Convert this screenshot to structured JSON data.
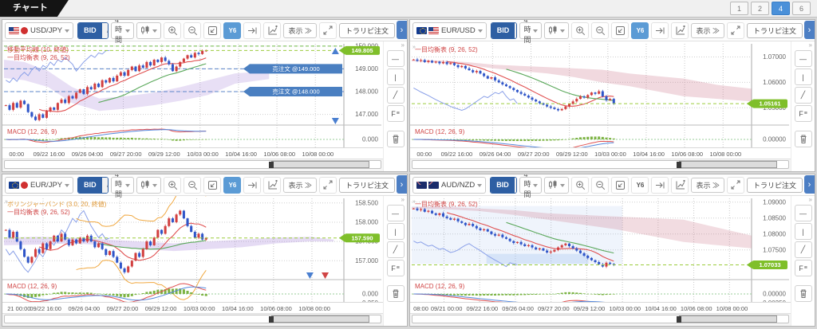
{
  "app": {
    "tab_title": "チャート",
    "layout_buttons": [
      "1",
      "2",
      "4",
      "6"
    ],
    "active_layout": "4"
  },
  "toolbar": {
    "bid": "BID",
    "ask": "ASK",
    "timeframe": "4時間",
    "y6": "Y6",
    "display": "表示 ≫",
    "trade_order": "トラリピ注文",
    "expand_tab": "›"
  },
  "panels": [
    {
      "pair": "USD/JPY",
      "flags": [
        "us",
        "jp"
      ],
      "y6_active": true
    },
    {
      "pair": "EUR/USD",
      "flags": [
        "eu",
        "us"
      ],
      "y6_active": true
    },
    {
      "pair": "EUR/JPY",
      "flags": [
        "eu",
        "jp"
      ],
      "y6_active": true
    },
    {
      "pair": "AUD/NZD",
      "flags": [
        "au",
        "nz"
      ],
      "y6_active": false
    }
  ],
  "chart_data": [
    {
      "type": "candlestick",
      "title": "USD/JPY 4時間",
      "ylim": [
        146.6,
        150.1
      ],
      "yticks": [
        {
          "v": 150.0,
          "label": "150.000"
        },
        {
          "v": 149.0,
          "label": "149.000"
        },
        {
          "v": 148.0,
          "label": "148.000"
        },
        {
          "v": 147.0,
          "label": "147.000"
        }
      ],
      "current": {
        "v": 149.805,
        "label": "149.805"
      },
      "legend": [
        {
          "text": "移動平均線 (10, 終値)",
          "color": "#d04545"
        },
        {
          "text": "一目均衡表 (9, 26, 52)",
          "color": "#d04545"
        }
      ],
      "macd_label": "MACD (12, 26, 9)",
      "macd_ticks": [
        {
          "label": "0.000",
          "pos": "zero"
        }
      ],
      "end_frac": 0.6,
      "closes": [
        147.4,
        147.2,
        147.5,
        147.3,
        147.6,
        147.45,
        147.1,
        146.9,
        146.75,
        147.0,
        146.85,
        147.15,
        147.3,
        147.2,
        147.5,
        147.65,
        147.5,
        147.8,
        147.7,
        147.95,
        148.1,
        147.9,
        148.2,
        148.1,
        148.35,
        148.2,
        148.5,
        148.4,
        148.6,
        148.45,
        148.7,
        148.85,
        148.7,
        148.95,
        149.1,
        148.9,
        149.15,
        149.05,
        149.3,
        149.15,
        149.4,
        149.3,
        149.5,
        149.35,
        149.2,
        148.9,
        149.1,
        149.3,
        149.45,
        149.6,
        149.5,
        149.7,
        149.65,
        149.8,
        149.805
      ],
      "cloud": {
        "color": "rgba(150,110,210,0.22)",
        "x": [
          0,
          0.06,
          0.13,
          0.2,
          0.28,
          0.36,
          0.44,
          0.52,
          0.6,
          0.68,
          0.78
        ],
        "a": [
          149.4,
          149.3,
          148.9,
          148.2,
          147.7,
          147.8,
          147.95,
          148.2,
          148.5,
          148.8,
          148.9
        ],
        "b": [
          148.6,
          148.5,
          148.2,
          147.5,
          147.15,
          147.25,
          147.4,
          147.6,
          147.85,
          148.35,
          148.55
        ]
      },
      "orders": [
        {
          "label": "売注文 @149.000",
          "v": 149.0
        },
        {
          "label": "売注文 @148.000",
          "v": 148.0
        }
      ],
      "levels": [
        {
          "v": 150.0,
          "color": "#6cbb44"
        }
      ],
      "annotations": [
        {
          "type": "up",
          "color": "#4a7fd0",
          "f": 0.975,
          "yf": 0.05
        },
        {
          "type": "down",
          "color": "#4a7fd0",
          "f": 0.975,
          "yf": 0.93
        }
      ],
      "xgrid": [
        0.125,
        0.238,
        0.351,
        0.464,
        0.577,
        0.69,
        0.803,
        0.916
      ],
      "xlabels": [
        {
          "f": 0.015,
          "label": "00:00"
        },
        {
          "f": 0.125,
          "label": "09/22 16:00"
        },
        {
          "f": 0.238,
          "label": "09/26 04:00"
        },
        {
          "f": 0.351,
          "label": "09/27 20:00"
        },
        {
          "f": 0.464,
          "label": "09/29 12:00"
        },
        {
          "f": 0.577,
          "label": "10/03 00:00"
        },
        {
          "f": 0.69,
          "label": "10/04 16:00"
        },
        {
          "f": 0.803,
          "label": "10/06 08:00"
        },
        {
          "f": 0.916,
          "label": "10/08 00:00"
        }
      ]
    },
    {
      "type": "candlestick",
      "title": "EUR/USD 4時間",
      "ylim": [
        1.0438,
        1.0752
      ],
      "yticks": [
        {
          "v": 1.07,
          "label": "1.07000"
        },
        {
          "v": 1.06,
          "label": "1.06000"
        },
        {
          "v": 1.05,
          "label": "1.05000"
        }
      ],
      "current": {
        "v": 1.05161,
        "label": "1.05161"
      },
      "legend": [
        {
          "text": "一目均衡表 (9, 26, 52)",
          "color": "#d04545"
        }
      ],
      "macd_label": "MACD (12, 26, 9)",
      "macd_ticks": [
        {
          "label": "0.00000",
          "pos": "zero"
        }
      ],
      "end_frac": 0.6,
      "closes": [
        1.069,
        1.0685,
        1.0688,
        1.068,
        1.0685,
        1.0678,
        1.0682,
        1.0675,
        1.068,
        1.0672,
        1.0676,
        1.0668,
        1.066,
        1.0665,
        1.0655,
        1.0648,
        1.064,
        1.0645,
        1.0635,
        1.0625,
        1.0615,
        1.062,
        1.0608,
        1.06,
        1.0592,
        1.0585,
        1.0578,
        1.057,
        1.0562,
        1.0555,
        1.0548,
        1.054,
        1.0532,
        1.0525,
        1.0518,
        1.0512,
        1.0505,
        1.05,
        1.0495,
        1.049,
        1.0495,
        1.0505,
        1.0515,
        1.0525,
        1.0535,
        1.0545,
        1.054,
        1.055,
        1.056,
        1.0555,
        1.0565,
        1.0545,
        1.053,
        1.0535,
        1.05161
      ],
      "cloud": {
        "color": "rgba(200,110,130,0.26)",
        "x": [
          0,
          0.08,
          0.16,
          0.24,
          0.32,
          0.4,
          0.48,
          0.56,
          0.64,
          0.72,
          0.8,
          0.9,
          1.0
        ],
        "a": [
          1.0688,
          1.0686,
          1.068,
          1.067,
          1.0665,
          1.066,
          1.0655,
          1.065,
          1.0635,
          1.0625,
          1.0615,
          1.059,
          1.0575
        ],
        "b": [
          1.0683,
          1.0678,
          1.067,
          1.0655,
          1.0645,
          1.0635,
          1.062,
          1.06,
          1.0585,
          1.0565,
          1.0545,
          1.0535,
          1.0525
        ]
      },
      "orders": [],
      "levels": [],
      "annotations": [],
      "xgrid": [
        0.125,
        0.238,
        0.351,
        0.464,
        0.577,
        0.69,
        0.803,
        0.916
      ],
      "xlabels": [
        {
          "f": 0.015,
          "label": "00:00"
        },
        {
          "f": 0.125,
          "label": "09/22 16:00"
        },
        {
          "f": 0.238,
          "label": "09/26 04:00"
        },
        {
          "f": 0.351,
          "label": "09/27 20:00"
        },
        {
          "f": 0.464,
          "label": "09/29 12:00"
        },
        {
          "f": 0.577,
          "label": "10/03 00:00"
        },
        {
          "f": 0.69,
          "label": "10/04 16:00"
        },
        {
          "f": 0.803,
          "label": "10/06 08:00"
        },
        {
          "f": 0.916,
          "label": "10/08 00:00"
        }
      ]
    },
    {
      "type": "candlestick",
      "title": "EUR/JPY 4時間",
      "ylim": [
        156.55,
        158.62
      ],
      "yticks": [
        {
          "v": 158.5,
          "label": "158.500"
        },
        {
          "v": 158.0,
          "label": "158.000"
        },
        {
          "v": 157.5,
          "label": "157.500"
        },
        {
          "v": 157.0,
          "label": "157.000"
        }
      ],
      "current": {
        "v": 157.59,
        "label": "157.590"
      },
      "legend": [
        {
          "text": "ボリンジャーバンド (3.0, 20, 終値)",
          "color": "#e09a3a"
        },
        {
          "text": "一目均衡表 (9, 26, 52)",
          "color": "#d04545"
        }
      ],
      "macd_label": "MACD (12, 26, 9)",
      "macd_ticks": [
        {
          "label": "0.000",
          "pos": "zero"
        },
        {
          "label": "-0.250",
          "pos": "bottom"
        }
      ],
      "end_frac": 0.6,
      "boll": {
        "n": 20,
        "k": 3,
        "color": "#f0a840"
      },
      "closes": [
        157.8,
        157.6,
        157.75,
        157.5,
        157.3,
        157.1,
        156.95,
        157.1,
        157.3,
        157.2,
        157.45,
        157.3,
        157.5,
        157.65,
        157.5,
        157.7,
        157.55,
        157.4,
        157.55,
        157.45,
        157.6,
        157.5,
        157.65,
        157.5,
        157.35,
        157.45,
        157.3,
        157.15,
        157.25,
        157.1,
        156.95,
        156.8,
        156.7,
        156.85,
        157.0,
        157.2,
        157.1,
        157.3,
        157.5,
        157.4,
        157.6,
        157.8,
        157.7,
        157.9,
        158.1,
        158.0,
        158.2,
        158.3,
        158.1,
        157.9,
        157.75,
        157.6,
        157.7,
        157.55,
        157.59
      ],
      "cloud": {
        "color": "rgba(150,110,210,0.25)",
        "x": [
          0,
          0.1,
          0.2,
          0.3,
          0.4,
          0.5,
          0.6,
          0.7,
          0.8,
          0.9,
          0.97
        ],
        "a": [
          157.6,
          157.62,
          157.6,
          157.55,
          157.5,
          157.45,
          157.5,
          157.55,
          157.6,
          157.62,
          157.55
        ],
        "b": [
          157.4,
          157.42,
          157.45,
          157.4,
          157.3,
          157.25,
          157.3,
          157.35,
          157.45,
          157.5,
          157.5
        ]
      },
      "orders": [],
      "levels": [],
      "annotations": [
        {
          "type": "down",
          "color": "#4a7fd0",
          "f": 0.9,
          "yf": 0.93
        },
        {
          "type": "down",
          "color": "#d04545",
          "f": 0.945,
          "yf": 0.93
        }
      ],
      "xgrid": [
        0.115,
        0.228,
        0.341,
        0.454,
        0.567,
        0.68,
        0.793,
        0.906
      ],
      "xlabels": [
        {
          "f": 0.01,
          "label": "21 00:00"
        },
        {
          "f": 0.115,
          "label": "09/22 16:00"
        },
        {
          "f": 0.228,
          "label": "09/26 04:00"
        },
        {
          "f": 0.341,
          "label": "09/27 20:00"
        },
        {
          "f": 0.454,
          "label": "09/29 12:00"
        },
        {
          "f": 0.567,
          "label": "10/03 00:00"
        },
        {
          "f": 0.68,
          "label": "10/04 16:00"
        },
        {
          "f": 0.793,
          "label": "10/06 08:00"
        },
        {
          "f": 0.906,
          "label": "10/08 00:00"
        }
      ]
    },
    {
      "type": "candlestick",
      "title": "AUD/NZD 4時間",
      "ylim": [
        1.0662,
        1.0912
      ],
      "yticks": [
        {
          "v": 1.09,
          "label": "1.09000"
        },
        {
          "v": 1.085,
          "label": "1.08500"
        },
        {
          "v": 1.08,
          "label": "1.08000"
        },
        {
          "v": 1.075,
          "label": "1.07500"
        }
      ],
      "current": {
        "v": 1.07033,
        "label": "1.07033"
      },
      "legend": [
        {
          "text": "一目均衡表 (9, 26, 52)",
          "color": "#d04545"
        }
      ],
      "macd_label": "MACD (12, 26, 9)",
      "macd_ticks": [
        {
          "label": "0.00000",
          "pos": "zero"
        },
        {
          "label": "-0.00250",
          "pos": "bottom"
        }
      ],
      "end_frac": 0.6,
      "closes": [
        1.088,
        1.0875,
        1.0878,
        1.087,
        1.0873,
        1.0865,
        1.086,
        1.0865,
        1.0855,
        1.085,
        1.0845,
        1.0848,
        1.084,
        1.0835,
        1.0828,
        1.0832,
        1.0825,
        1.0818,
        1.0812,
        1.0815,
        1.0808,
        1.08,
        1.0795,
        1.0798,
        1.079,
        1.0785,
        1.0778,
        1.0772,
        1.0775,
        1.0768,
        1.0762,
        1.0765,
        1.0758,
        1.0752,
        1.0755,
        1.0748,
        1.0742,
        1.0745,
        1.075,
        1.0758,
        1.0765,
        1.077,
        1.0762,
        1.0755,
        1.0748,
        1.074,
        1.0732,
        1.0725,
        1.0718,
        1.0712,
        1.0705,
        1.0698,
        1.071,
        1.0706,
        1.07033
      ],
      "cloud": {
        "color": "rgba(200,110,130,0.24)",
        "x": [
          0,
          0.1,
          0.2,
          0.3,
          0.4,
          0.5,
          0.6,
          0.7,
          0.8,
          0.9,
          1.0
        ],
        "a": [
          1.0885,
          1.0885,
          1.088,
          1.0875,
          1.0865,
          1.086,
          1.0855,
          1.085,
          1.0845,
          1.082,
          1.0795
        ],
        "b": [
          1.088,
          1.0878,
          1.0872,
          1.086,
          1.0845,
          1.083,
          1.0815,
          1.0795,
          1.0775,
          1.0765,
          1.0755
        ]
      },
      "bands": [
        {
          "top": 1.0888,
          "bottom": 1.0706,
          "x0": 0,
          "x1": 0.62,
          "color": "rgba(140,180,235,0.14)"
        },
        {
          "top": 1.0738,
          "bottom": 1.0706,
          "x0": 0.22,
          "x1": 0.52,
          "color": "rgba(140,180,235,0.25)"
        }
      ],
      "orders": [],
      "levels": [],
      "annotations": [],
      "xgrid": [
        0.095,
        0.2,
        0.305,
        0.41,
        0.515,
        0.62,
        0.725,
        0.83,
        0.935
      ],
      "xlabels": [
        {
          "f": 0.005,
          "label": "08:00"
        },
        {
          "f": 0.095,
          "label": "09/21 00:00"
        },
        {
          "f": 0.2,
          "label": "09/22 16:00"
        },
        {
          "f": 0.305,
          "label": "09/26 04:00"
        },
        {
          "f": 0.41,
          "label": "09/27 20:00"
        },
        {
          "f": 0.515,
          "label": "09/29 12:00"
        },
        {
          "f": 0.62,
          "label": "10/03 00:00"
        },
        {
          "f": 0.725,
          "label": "10/04 16:00"
        },
        {
          "f": 0.83,
          "label": "10/06 08:00"
        },
        {
          "f": 0.935,
          "label": "10/08 00:00"
        }
      ]
    }
  ]
}
